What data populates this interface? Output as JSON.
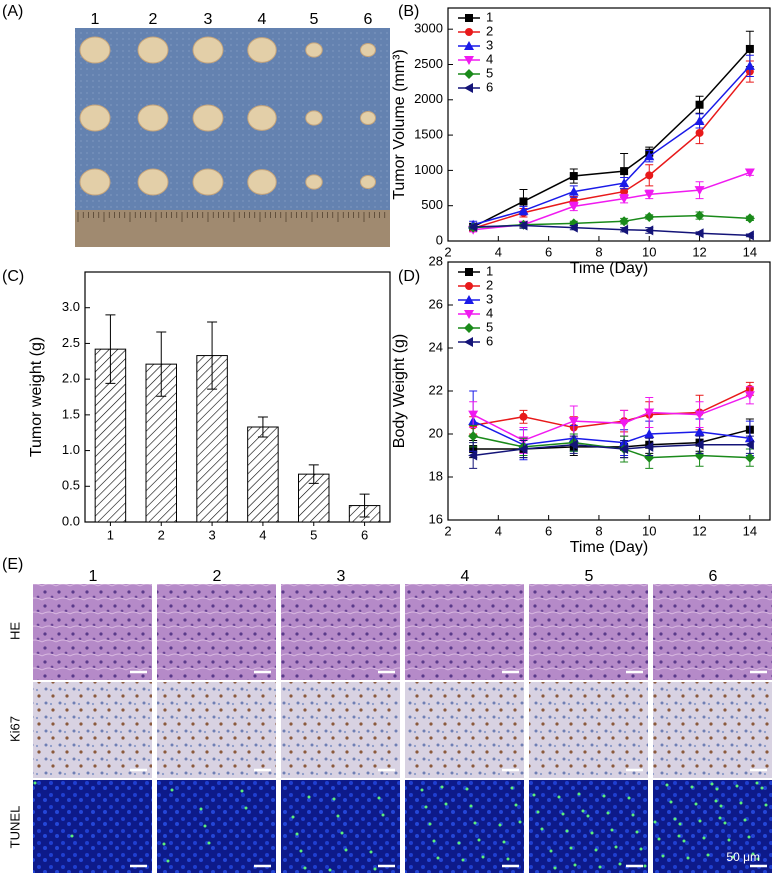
{
  "panel_labels": [
    "(A)",
    "(B)",
    "(C)",
    "(D)",
    "(E)"
  ],
  "photo": {
    "columns": [
      "1",
      "2",
      "3",
      "4",
      "5",
      "6"
    ]
  },
  "histology": {
    "columns": [
      "1",
      "2",
      "3",
      "4",
      "5",
      "6"
    ],
    "rows": [
      "HE",
      "Ki67",
      "TUNEL"
    ],
    "scale_bar": "50 μm"
  },
  "chart_data": [
    {
      "type": "line",
      "x": [
        3,
        5,
        7,
        9,
        10,
        12,
        14
      ],
      "xlim": [
        2,
        14.8
      ],
      "xticks": [
        2,
        4,
        6,
        8,
        10,
        12,
        14
      ],
      "ylim": [
        0,
        3300
      ],
      "yticks": [
        0,
        500,
        1000,
        1500,
        2000,
        2500,
        3000
      ],
      "xlabel": "Time (Day)",
      "ylabel": "Tumor Volume (mm³)",
      "legend": "upper left",
      "series": [
        {
          "name": "1",
          "color": "#000000",
          "marker": "square",
          "values": [
            200,
            560,
            920,
            990,
            1250,
            1930,
            2720
          ],
          "errors": [
            50,
            170,
            100,
            250,
            80,
            120,
            250
          ]
        },
        {
          "name": "2",
          "color": "#e8191a",
          "marker": "circle",
          "values": [
            180,
            400,
            570,
            700,
            930,
            1530,
            2400
          ],
          "errors": [
            40,
            60,
            60,
            80,
            150,
            150,
            150
          ]
        },
        {
          "name": "3",
          "color": "#1a1ae8",
          "marker": "triangle-up",
          "values": [
            230,
            430,
            700,
            820,
            1200,
            1700,
            2480
          ],
          "errors": [
            50,
            60,
            80,
            80,
            80,
            100,
            150
          ]
        },
        {
          "name": "4",
          "color": "#f01af0",
          "marker": "triangle-down",
          "values": [
            160,
            230,
            490,
            600,
            660,
            720,
            970
          ],
          "errors": [
            30,
            40,
            60,
            60,
            60,
            120,
            40
          ]
        },
        {
          "name": "5",
          "color": "#1a8a1a",
          "marker": "diamond",
          "values": [
            190,
            230,
            250,
            280,
            340,
            360,
            320
          ],
          "errors": [
            30,
            30,
            30,
            40,
            30,
            50,
            30
          ]
        },
        {
          "name": "6",
          "color": "#141478",
          "marker": "triangle-left",
          "values": [
            200,
            220,
            190,
            160,
            150,
            110,
            80
          ],
          "errors": [
            30,
            40,
            30,
            30,
            40,
            20,
            20
          ]
        }
      ]
    },
    {
      "type": "bar",
      "categories": [
        "1",
        "2",
        "3",
        "4",
        "5",
        "6"
      ],
      "values": [
        2.42,
        2.21,
        2.33,
        1.33,
        0.67,
        0.23
      ],
      "errors": [
        0.48,
        0.45,
        0.47,
        0.14,
        0.13,
        0.16
      ],
      "ylim": [
        0,
        3.5
      ],
      "yticks": [
        {
          "value": 0,
          "label": "0.0"
        },
        0.5,
        {
          "value": 1,
          "label": "1.0"
        },
        1.5,
        {
          "value": 2,
          "label": "2.0"
        },
        2.5,
        {
          "value": 3,
          "label": "3.0"
        }
      ],
      "ylabel": "Tumor weight (g)",
      "color": "#000000",
      "hatch": true
    },
    {
      "type": "line",
      "x": [
        3,
        5,
        7,
        9,
        10,
        12,
        14
      ],
      "xlim": [
        2,
        14.8
      ],
      "xticks": [
        2,
        4,
        6,
        8,
        10,
        12,
        14
      ],
      "ylim": [
        16,
        28
      ],
      "yticks": [
        16,
        18,
        20,
        22,
        24,
        26,
        28
      ],
      "xlabel": "Time (Day)",
      "ylabel": "Body Weight (g)",
      "legend": "upper left",
      "series": [
        {
          "name": "1",
          "color": "#000000",
          "marker": "square",
          "values": [
            19.3,
            19.3,
            19.4,
            19.4,
            19.5,
            19.6,
            20.2
          ],
          "errors": [
            0.4,
            0.4,
            0.4,
            0.5,
            0.4,
            0.4,
            0.5
          ]
        },
        {
          "name": "2",
          "color": "#e8191a",
          "marker": "circle",
          "values": [
            20.4,
            20.8,
            20.3,
            20.6,
            20.9,
            21.0,
            22.1
          ],
          "errors": [
            0.4,
            0.3,
            0.5,
            0.5,
            0.6,
            0.8,
            0.3
          ]
        },
        {
          "name": "3",
          "color": "#1a1ae8",
          "marker": "triangle-up",
          "values": [
            20.6,
            19.5,
            19.8,
            19.6,
            20.0,
            20.1,
            19.8
          ],
          "errors": [
            1.4,
            0.7,
            0.6,
            0.6,
            0.6,
            0.6,
            0.8
          ]
        },
        {
          "name": "4",
          "color": "#f01af0",
          "marker": "triangle-down",
          "values": [
            20.9,
            19.7,
            20.6,
            20.5,
            21.0,
            20.9,
            21.8
          ],
          "errors": [
            0.6,
            0.6,
            0.7,
            0.6,
            0.7,
            0.6,
            0.4
          ]
        },
        {
          "name": "5",
          "color": "#1a8a1a",
          "marker": "diamond",
          "values": [
            19.9,
            19.4,
            19.6,
            19.3,
            18.9,
            19.0,
            18.9
          ],
          "errors": [
            0.5,
            0.4,
            0.4,
            0.6,
            0.5,
            0.5,
            0.4
          ]
        },
        {
          "name": "6",
          "color": "#141478",
          "marker": "triangle-left",
          "values": [
            19.0,
            19.3,
            19.5,
            19.3,
            19.4,
            19.5,
            19.5
          ],
          "errors": [
            0.6,
            0.4,
            0.4,
            0.4,
            0.4,
            0.4,
            0.4
          ]
        }
      ]
    }
  ]
}
